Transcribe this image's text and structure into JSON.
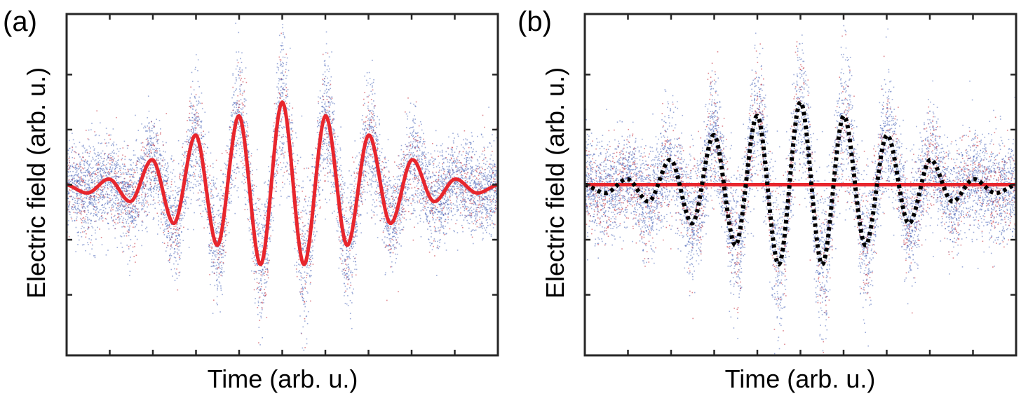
{
  "chart_data": [
    {
      "type": "scatter",
      "panel_label": "(a)",
      "xlabel": "Time (arb. u.)",
      "ylabel": "Electric field (arb. u.)",
      "xlim": [
        0,
        10
      ],
      "ylim": [
        -3.1,
        3.1
      ],
      "x_ticks": [
        1,
        2,
        3,
        4,
        5,
        6,
        7,
        8,
        9
      ],
      "y_ticks": [
        -2,
        -1,
        0,
        1,
        2
      ],
      "tick_labels_shown": false,
      "grid": false,
      "series": [
        {
          "kind": "scatter-cloud",
          "colors": [
            "#4a66b8",
            "#c22030"
          ],
          "description_points": "noisy samples scattered around the fitted pulse",
          "noise_sd": 0.55
        },
        {
          "kind": "line",
          "color": "#e8262d",
          "style": "solid",
          "x": [
            0,
            0.5,
            1,
            1.5,
            2,
            2.5,
            3,
            3.5,
            4,
            4.5,
            5,
            5.5,
            6,
            6.5,
            7,
            7.5,
            8,
            8.5,
            9,
            9.5,
            10
          ],
          "y": [
            0,
            -0.15,
            0.1,
            -0.3,
            0.45,
            -0.7,
            0.9,
            -1.1,
            1.25,
            -1.45,
            1.5,
            -1.45,
            1.25,
            -1.1,
            0.9,
            -0.7,
            0.45,
            -0.3,
            0.1,
            -0.15,
            0
          ]
        }
      ]
    },
    {
      "type": "scatter",
      "panel_label": "(b)",
      "xlabel": "Time (arb. u.)",
      "ylabel": "Electric field (arb. u.)",
      "xlim": [
        0,
        10
      ],
      "ylim": [
        -3.1,
        3.1
      ],
      "x_ticks": [
        1,
        2,
        3,
        4,
        5,
        6,
        7,
        8,
        9
      ],
      "y_ticks": [
        -2,
        -1,
        0,
        1,
        2
      ],
      "tick_labels_shown": false,
      "grid": false,
      "series": [
        {
          "kind": "scatter-cloud",
          "colors": [
            "#4a66b8",
            "#c22030"
          ],
          "noise_sd": 0.6
        },
        {
          "kind": "line",
          "color": "#e8262d",
          "style": "solid",
          "x": [
            0,
            10
          ],
          "y": [
            0,
            0
          ]
        },
        {
          "kind": "line",
          "color": "#000000",
          "style": "dotted",
          "x": [
            0,
            0.5,
            1,
            1.5,
            2,
            2.5,
            3,
            3.5,
            4,
            4.5,
            5,
            5.5,
            6,
            6.5,
            7,
            7.5,
            8,
            8.5,
            9,
            9.5,
            10
          ],
          "y": [
            0,
            -0.15,
            0.1,
            -0.3,
            0.45,
            -0.7,
            0.9,
            -1.1,
            1.25,
            -1.45,
            1.5,
            -1.45,
            1.25,
            -1.1,
            0.9,
            -0.7,
            0.45,
            -0.3,
            0.1,
            -0.15,
            0
          ]
        }
      ]
    }
  ]
}
